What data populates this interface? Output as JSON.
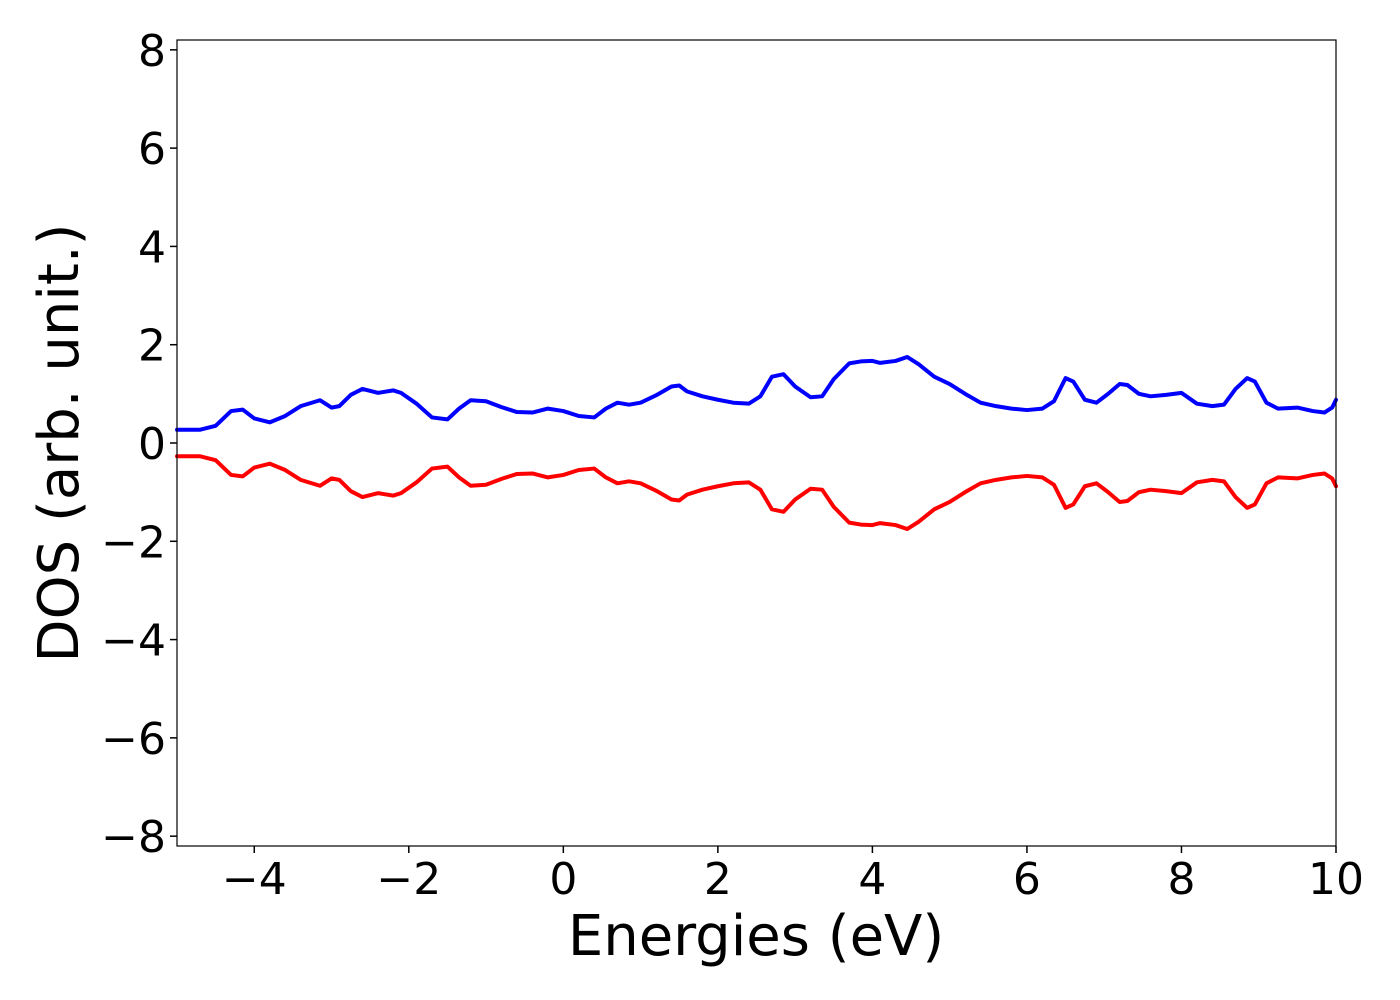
{
  "chart_data": {
    "type": "line",
    "title": "",
    "xlabel": "Energies (eV)",
    "ylabel": "DOS (arb. unit.)",
    "xlim": [
      -5,
      10
    ],
    "ylim": [
      -8.2,
      8.2
    ],
    "xticks": [
      -4,
      -2,
      0,
      2,
      4,
      6,
      8,
      10
    ],
    "xtick_labels": [
      "−4",
      "−2",
      "0",
      "2",
      "4",
      "6",
      "8",
      "10"
    ],
    "yticks": [
      8,
      6,
      4,
      2,
      0,
      -2,
      -4,
      -6,
      -8
    ],
    "ytick_labels": [
      "8",
      "6",
      "4",
      "2",
      "0",
      "−2",
      "−4",
      "−6",
      "−8"
    ],
    "grid": false,
    "legend": "none",
    "series": [
      {
        "color": "#0000ff",
        "x": [
          -5.0,
          -4.7,
          -4.5,
          -4.3,
          -4.15,
          -4.0,
          -3.8,
          -3.6,
          -3.4,
          -3.15,
          -3.0,
          -2.9,
          -2.75,
          -2.6,
          -2.4,
          -2.2,
          -2.1,
          -1.9,
          -1.7,
          -1.5,
          -1.35,
          -1.2,
          -1.0,
          -0.8,
          -0.6,
          -0.4,
          -0.2,
          0.0,
          0.2,
          0.4,
          0.55,
          0.7,
          0.85,
          1.0,
          1.2,
          1.4,
          1.5,
          1.6,
          1.8,
          2.0,
          2.2,
          2.4,
          2.55,
          2.7,
          2.85,
          3.0,
          3.2,
          3.35,
          3.5,
          3.7,
          3.85,
          4.0,
          4.1,
          4.3,
          4.45,
          4.6,
          4.8,
          5.0,
          5.2,
          5.4,
          5.6,
          5.8,
          6.0,
          6.2,
          6.35,
          6.5,
          6.6,
          6.75,
          6.9,
          7.05,
          7.2,
          7.3,
          7.45,
          7.6,
          7.8,
          8.0,
          8.2,
          8.4,
          8.55,
          8.7,
          8.85,
          8.95,
          9.1,
          9.25,
          9.5,
          9.7,
          9.85,
          9.95,
          10.0
        ],
        "y": [
          0.27,
          0.27,
          0.35,
          0.65,
          0.68,
          0.5,
          0.42,
          0.55,
          0.75,
          0.87,
          0.72,
          0.75,
          0.98,
          1.1,
          1.02,
          1.07,
          1.02,
          0.8,
          0.52,
          0.48,
          0.7,
          0.87,
          0.85,
          0.73,
          0.63,
          0.62,
          0.7,
          0.65,
          0.55,
          0.52,
          0.7,
          0.82,
          0.78,
          0.82,
          0.97,
          1.15,
          1.17,
          1.05,
          0.95,
          0.88,
          0.82,
          0.8,
          0.95,
          1.35,
          1.4,
          1.15,
          0.93,
          0.95,
          1.3,
          1.62,
          1.66,
          1.67,
          1.63,
          1.67,
          1.75,
          1.6,
          1.35,
          1.2,
          1.0,
          0.82,
          0.75,
          0.7,
          0.67,
          0.7,
          0.85,
          1.32,
          1.25,
          0.88,
          0.82,
          1.0,
          1.2,
          1.18,
          1.0,
          0.95,
          0.98,
          1.02,
          0.8,
          0.75,
          0.78,
          1.1,
          1.32,
          1.25,
          0.82,
          0.7,
          0.72,
          0.65,
          0.62,
          0.72,
          0.88
        ]
      },
      {
        "color": "#ff0000",
        "x": [
          -5.0,
          -4.7,
          -4.5,
          -4.3,
          -4.15,
          -4.0,
          -3.8,
          -3.6,
          -3.4,
          -3.15,
          -3.0,
          -2.9,
          -2.75,
          -2.6,
          -2.4,
          -2.2,
          -2.1,
          -1.9,
          -1.7,
          -1.5,
          -1.35,
          -1.2,
          -1.0,
          -0.8,
          -0.6,
          -0.4,
          -0.2,
          0.0,
          0.2,
          0.4,
          0.55,
          0.7,
          0.85,
          1.0,
          1.2,
          1.4,
          1.5,
          1.6,
          1.8,
          2.0,
          2.2,
          2.4,
          2.55,
          2.7,
          2.85,
          3.0,
          3.2,
          3.35,
          3.5,
          3.7,
          3.85,
          4.0,
          4.1,
          4.3,
          4.45,
          4.6,
          4.8,
          5.0,
          5.2,
          5.4,
          5.6,
          5.8,
          6.0,
          6.2,
          6.35,
          6.5,
          6.6,
          6.75,
          6.9,
          7.05,
          7.2,
          7.3,
          7.45,
          7.6,
          7.8,
          8.0,
          8.2,
          8.4,
          8.55,
          8.7,
          8.85,
          8.95,
          9.1,
          9.25,
          9.5,
          9.7,
          9.85,
          9.95,
          10.0
        ],
        "y": [
          -0.27,
          -0.27,
          -0.35,
          -0.65,
          -0.68,
          -0.5,
          -0.42,
          -0.55,
          -0.75,
          -0.87,
          -0.72,
          -0.75,
          -0.98,
          -1.1,
          -1.02,
          -1.07,
          -1.02,
          -0.8,
          -0.52,
          -0.48,
          -0.7,
          -0.87,
          -0.85,
          -0.73,
          -0.63,
          -0.62,
          -0.7,
          -0.65,
          -0.55,
          -0.52,
          -0.7,
          -0.82,
          -0.78,
          -0.82,
          -0.97,
          -1.15,
          -1.17,
          -1.05,
          -0.95,
          -0.88,
          -0.82,
          -0.8,
          -0.95,
          -1.35,
          -1.4,
          -1.15,
          -0.93,
          -0.95,
          -1.3,
          -1.62,
          -1.66,
          -1.67,
          -1.63,
          -1.67,
          -1.75,
          -1.6,
          -1.35,
          -1.2,
          -1.0,
          -0.82,
          -0.75,
          -0.7,
          -0.67,
          -0.7,
          -0.85,
          -1.32,
          -1.25,
          -0.88,
          -0.82,
          -1.0,
          -1.2,
          -1.18,
          -1.0,
          -0.95,
          -0.98,
          -1.02,
          -0.8,
          -0.75,
          -0.78,
          -1.1,
          -1.32,
          -1.25,
          -0.82,
          -0.7,
          -0.72,
          -0.65,
          -0.62,
          -0.72,
          -0.88
        ]
      }
    ]
  }
}
